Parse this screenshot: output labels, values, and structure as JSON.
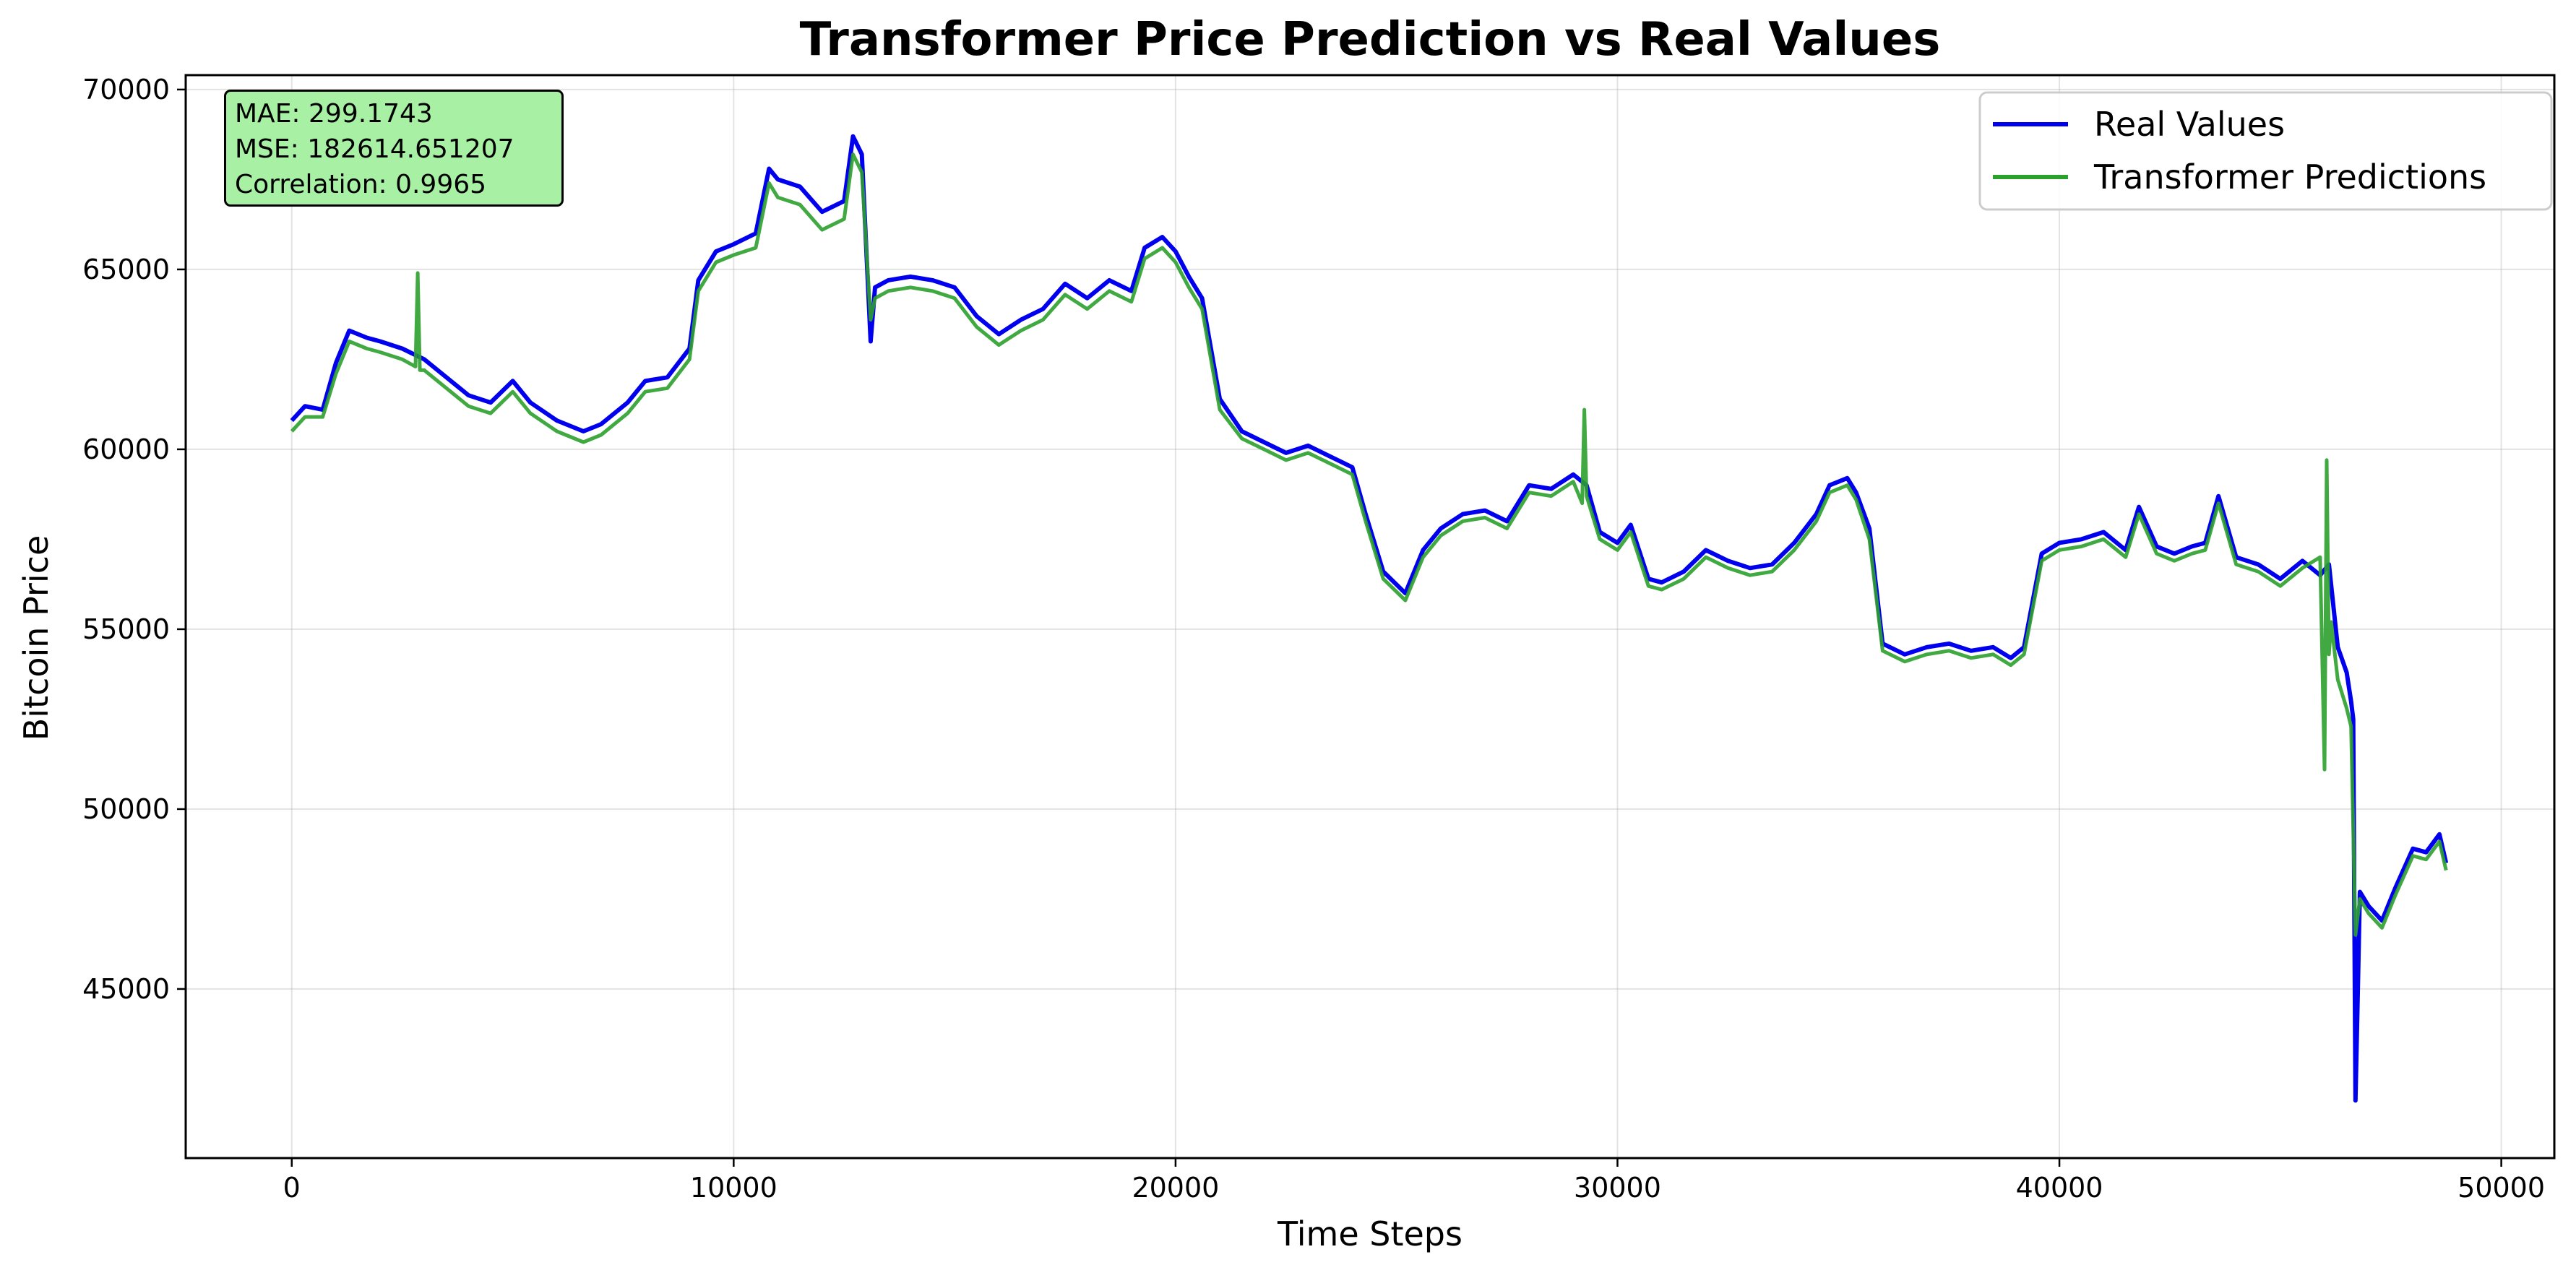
{
  "chart_data": {
    "type": "line",
    "title": "Transformer Price Prediction vs Real Values",
    "xlabel": "Time Steps",
    "ylabel": "Bitcoin Price",
    "xlim": [
      -2400,
      51200
    ],
    "ylim": [
      40300,
      70400
    ],
    "x_ticks": [
      0,
      10000,
      20000,
      30000,
      40000,
      50000
    ],
    "x_tick_labels": [
      "0",
      "10000",
      "20000",
      "30000",
      "40000",
      "50000"
    ],
    "y_ticks": [
      45000,
      50000,
      55000,
      60000,
      65000,
      70000
    ],
    "y_tick_labels": [
      "45000",
      "50000",
      "55000",
      "60000",
      "65000",
      "70000"
    ],
    "grid": true,
    "legend_position": "top-right",
    "annotation": {
      "mae_text": "MAE: 299.1743",
      "mse_text": "MSE: 182614.651207",
      "corr_text": "Correlation: 0.9965",
      "background": "#a8f0a3"
    },
    "series": [
      {
        "name": "Real Values",
        "color": "#0000ee",
        "x": [
          0,
          300,
          700,
          1000,
          1300,
          1700,
          2000,
          2500,
          3000,
          3500,
          4000,
          4500,
          5000,
          5400,
          6000,
          6600,
          7000,
          7600,
          8000,
          8500,
          9000,
          9200,
          9600,
          10000,
          10500,
          10800,
          11000,
          11500,
          12000,
          12500,
          12700,
          12900,
          13100,
          13200,
          13500,
          14000,
          14500,
          15000,
          15500,
          16000,
          16500,
          17000,
          17500,
          18000,
          18500,
          19000,
          19300,
          19700,
          20000,
          20300,
          20600,
          21000,
          21500,
          22000,
          22500,
          23000,
          23500,
          24000,
          24300,
          24700,
          25200,
          25600,
          26000,
          26500,
          27000,
          27500,
          28000,
          28500,
          29000,
          29300,
          29600,
          30000,
          30300,
          30700,
          31000,
          31500,
          32000,
          32500,
          33000,
          33500,
          34000,
          34500,
          34800,
          35200,
          35400,
          35700,
          36000,
          36500,
          37000,
          37500,
          38000,
          38500,
          38900,
          39200,
          39600,
          40000,
          40500,
          41000,
          41500,
          41800,
          42200,
          42600,
          43000,
          43300,
          43600,
          44000,
          44500,
          45000,
          45500,
          45900,
          46100,
          46300,
          46500,
          46600,
          46650,
          46700,
          46750,
          46800,
          47000,
          47300,
          47600,
          48000,
          48300,
          48600,
          48750
        ],
        "values": [
          60800,
          61200,
          61100,
          62400,
          63300,
          63100,
          63000,
          62800,
          62500,
          62000,
          61500,
          61300,
          61900,
          61300,
          60800,
          60500,
          60700,
          61300,
          61900,
          62000,
          62800,
          64700,
          65500,
          65700,
          66000,
          67800,
          67500,
          67300,
          66600,
          66900,
          68700,
          68200,
          63000,
          64500,
          64700,
          64800,
          64700,
          64500,
          63700,
          63200,
          63600,
          63900,
          64600,
          64200,
          64700,
          64400,
          65600,
          65900,
          65500,
          64800,
          64200,
          61400,
          60500,
          60200,
          59900,
          60100,
          59800,
          59500,
          58200,
          56600,
          56000,
          57200,
          57800,
          58200,
          58300,
          58000,
          59000,
          58900,
          59300,
          59000,
          57700,
          57400,
          57900,
          56400,
          56300,
          56600,
          57200,
          56900,
          56700,
          56800,
          57400,
          58200,
          59000,
          59200,
          58800,
          57800,
          54600,
          54300,
          54500,
          54600,
          54400,
          54500,
          54200,
          54500,
          57100,
          57400,
          57500,
          57700,
          57200,
          58400,
          57300,
          57100,
          57300,
          57400,
          58700,
          57000,
          56800,
          56400,
          56900,
          56500,
          56800,
          54500,
          53800,
          53000,
          52500,
          41900,
          44800,
          47700,
          47300,
          46900,
          47800,
          48900,
          48800,
          49300,
          48500
        ]
      },
      {
        "name": "Transformer Predictions",
        "color": "#2ca02c",
        "x": [
          0,
          300,
          700,
          1000,
          1300,
          1700,
          2000,
          2500,
          2800,
          2850,
          2900,
          3000,
          3500,
          4000,
          4500,
          5000,
          5400,
          6000,
          6600,
          7000,
          7600,
          8000,
          8500,
          9000,
          9200,
          9600,
          10000,
          10500,
          10800,
          11000,
          11500,
          12000,
          12500,
          12700,
          12900,
          13100,
          13200,
          13500,
          14000,
          14500,
          15000,
          15500,
          16000,
          16500,
          17000,
          17500,
          18000,
          18500,
          19000,
          19300,
          19700,
          20000,
          20300,
          20600,
          21000,
          21500,
          22000,
          22500,
          23000,
          23500,
          24000,
          24300,
          24700,
          25200,
          25600,
          26000,
          26500,
          27000,
          27500,
          28000,
          28500,
          29000,
          29200,
          29250,
          29300,
          29600,
          30000,
          30300,
          30700,
          31000,
          31500,
          32000,
          32500,
          33000,
          33500,
          34000,
          34500,
          34800,
          35200,
          35400,
          35700,
          36000,
          36500,
          37000,
          37500,
          38000,
          38500,
          38900,
          39200,
          39600,
          40000,
          40500,
          41000,
          41500,
          41800,
          42200,
          42600,
          43000,
          43300,
          43600,
          44000,
          44500,
          45000,
          45500,
          45900,
          46000,
          46050,
          46100,
          46150,
          46300,
          46500,
          46600,
          46700,
          46800,
          47000,
          47300,
          47600,
          48000,
          48300,
          48600,
          48750
        ],
        "values": [
          60500,
          60900,
          60900,
          62100,
          63000,
          62800,
          62700,
          62500,
          62300,
          64900,
          62200,
          62200,
          61700,
          61200,
          61000,
          61600,
          61000,
          60500,
          60200,
          60400,
          61000,
          61600,
          61700,
          62500,
          64400,
          65200,
          65400,
          65600,
          67400,
          67000,
          66800,
          66100,
          66400,
          68200,
          67700,
          63600,
          64200,
          64400,
          64500,
          64400,
          64200,
          63400,
          62900,
          63300,
          63600,
          64300,
          63900,
          64400,
          64100,
          65300,
          65600,
          65200,
          64500,
          63900,
          61100,
          60300,
          60000,
          59700,
          59900,
          59600,
          59300,
          58000,
          56400,
          55800,
          57000,
          57600,
          58000,
          58100,
          57800,
          58800,
          58700,
          59100,
          58500,
          61100,
          58700,
          57500,
          57200,
          57700,
          56200,
          56100,
          56400,
          57000,
          56700,
          56500,
          56600,
          57200,
          58000,
          58800,
          59000,
          58600,
          57500,
          54400,
          54100,
          54300,
          54400,
          54200,
          54300,
          54000,
          54300,
          56900,
          57200,
          57300,
          57500,
          57000,
          58200,
          57100,
          56900,
          57100,
          57200,
          58500,
          56800,
          56600,
          56200,
          56700,
          57000,
          51100,
          59700,
          54300,
          55200,
          53600,
          52800,
          52300,
          46500,
          47500,
          47100,
          46700,
          47600,
          48700,
          48600,
          49100,
          48300
        ]
      }
    ]
  }
}
